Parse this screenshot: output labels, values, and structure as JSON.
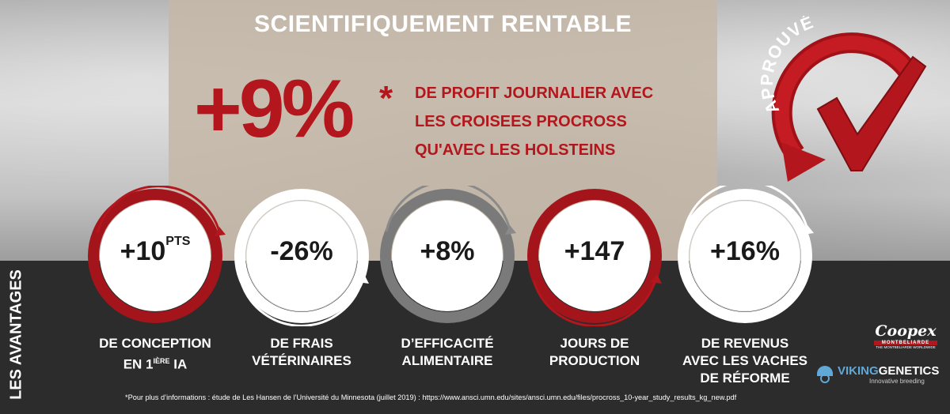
{
  "header": {
    "title": "SCIENTIFIQUEMENT RENTABLE",
    "big_number": "+9%",
    "asterisk": "*",
    "headline": [
      "DE PROFIT JOURNALIER AVEC",
      "LES CROISEES PROCROSS",
      "QU'AVEC LES HOLSTEINS"
    ]
  },
  "stamp": {
    "label": "APPROUVÉ",
    "icon": "checkmark-icon"
  },
  "sidebar": {
    "label": "LES AVANTAGES"
  },
  "stats": [
    {
      "value": "+10",
      "sup": "PTS",
      "caption_line1": "DE CONCEPTION",
      "caption_line2_pre": "EN 1",
      "caption_sup": "IÈRE",
      "caption_line2_post": " IA",
      "style": "red"
    },
    {
      "value": "-26%",
      "caption_line1": "DE FRAIS",
      "caption_line2": "VÉTÉRINAIRES",
      "style": "white"
    },
    {
      "value": "+8%",
      "caption_line1": "D’EFFICACITÉ",
      "caption_line2": "ALIMENTAIRE",
      "style": "grey"
    },
    {
      "value": "+147",
      "caption_line1": "JOURS DE",
      "caption_line2": "PRODUCTION",
      "style": "red"
    },
    {
      "value": "+16%",
      "caption_line1": "DE REVENUS",
      "caption_line2": "AVEC LES VACHES",
      "caption_line3": "DE RÉFORME",
      "style": "white"
    }
  ],
  "footnote": "*Pour plus d’informations : étude de Les Hansen de l’Université du Minnesota (juillet 2019) : https://www.ansci.umn.edu/sites/ansci.umn.edu/files/procross_10-year_study_results_kg_new.pdf",
  "logos": {
    "coopex": "Coopex",
    "coopex_band": "MONTBELIARDE",
    "coopex_tagline": "THE MONTBELIARDE WORLDWIDE",
    "viking_a": "VIKING",
    "viking_b": "GENETICS",
    "viking_tagline": "Innovative breeding"
  },
  "colors": {
    "accent_red": "#b3161c",
    "dark_band": "#2c2c2c",
    "beige_panel": "#c4b7a6"
  }
}
